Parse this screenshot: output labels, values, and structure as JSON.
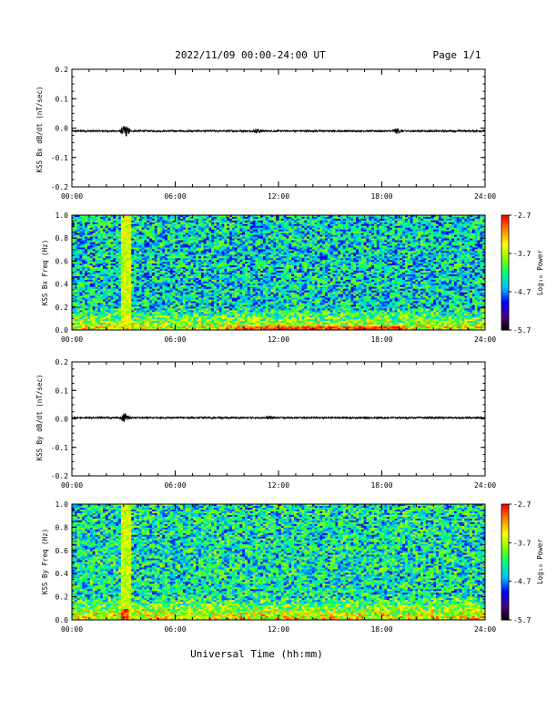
{
  "header": {
    "title": "2022/11/09  00:00-24:00 UT",
    "page": "Page 1/1"
  },
  "colors": {
    "trace": "#000000",
    "colormap": [
      "#000000",
      "#4b0082",
      "#0000ff",
      "#00bfff",
      "#00ff7f",
      "#7fff00",
      "#ffff00",
      "#ff8c00",
      "#ff0000"
    ]
  },
  "chart_data": [
    {
      "type": "line",
      "ylabel": "KSS Bx dB/dt (nT/sec)",
      "xlim": [
        0,
        24
      ],
      "ylim": [
        -0.2,
        0.2
      ],
      "yticks": [
        "0.2",
        "0.1",
        "0.0",
        "-0.1",
        "-0.2"
      ],
      "xticks": [
        "00:00",
        "06:00",
        "12:00",
        "18:00",
        "24:00"
      ],
      "series": [
        {
          "baseline": -0.01,
          "noise_amplitude": 0.003,
          "bursts": [
            {
              "t": 3.1,
              "amplitude": 0.02
            },
            {
              "t": 18.9,
              "amplitude": 0.008
            },
            {
              "t": 10.8,
              "amplitude": 0.006
            }
          ]
        }
      ]
    },
    {
      "type": "heatmap",
      "ylabel": "KSS Bx Freq (Hz)",
      "xlim": [
        0,
        24
      ],
      "ylim": [
        0,
        1
      ],
      "yticks": [
        "1.0",
        "0.8",
        "0.6",
        "0.4",
        "0.2",
        "0.0"
      ],
      "xticks": [
        "00:00",
        "06:00",
        "12:00",
        "18:00",
        "24:00"
      ],
      "colorbar": {
        "label": "Log₁₀ Power",
        "ticks": [
          "-2.7",
          "-3.7",
          "-4.7",
          "-5.7"
        ],
        "range": [
          -5.7,
          -2.7
        ]
      },
      "features": {
        "background_level": -4.4,
        "low_freq_enhancement_below_hz": 0.2,
        "broadband_event": {
          "start": 2.8,
          "end": 3.4,
          "level": -3.6
        },
        "low_freq_band_event": {
          "start": 9.5,
          "end": 19.5,
          "max_freq": 0.03,
          "level": -2.9
        }
      }
    },
    {
      "type": "line",
      "ylabel": "KSS By dB/dt (nT/sec)",
      "xlim": [
        0,
        24
      ],
      "ylim": [
        -0.2,
        0.2
      ],
      "yticks": [
        "0.2",
        "0.1",
        "0.0",
        "-0.1",
        "-0.2"
      ],
      "xticks": [
        "00:00",
        "06:00",
        "12:00",
        "18:00",
        "24:00"
      ],
      "series": [
        {
          "baseline": 0.004,
          "noise_amplitude": 0.003,
          "bursts": [
            {
              "t": 3.1,
              "amplitude": 0.015
            },
            {
              "t": 11.5,
              "amplitude": 0.004
            }
          ]
        }
      ]
    },
    {
      "type": "heatmap",
      "ylabel": "KSS By Freq (Hz)",
      "xlim": [
        0,
        24
      ],
      "ylim": [
        0,
        1
      ],
      "yticks": [
        "1.0",
        "0.8",
        "0.6",
        "0.4",
        "0.2",
        "0.0"
      ],
      "xticks": [
        "00:00",
        "06:00",
        "12:00",
        "18:00",
        "24:00"
      ],
      "colorbar": {
        "label": "Log₁₀ Power",
        "ticks": [
          "-2.7",
          "-3.7",
          "-4.7",
          "-5.7"
        ],
        "range": [
          -5.7,
          -2.7
        ]
      },
      "features": {
        "background_level": -4.3,
        "low_freq_enhancement_below_hz": 0.2,
        "broadband_event": {
          "start": 2.8,
          "end": 3.4,
          "level": -3.6
        },
        "low_freq_band_event": {
          "start": 2.9,
          "end": 3.3,
          "max_freq": 0.1,
          "level": -2.9
        }
      }
    }
  ],
  "xlabel": "Universal Time (hh:mm)"
}
